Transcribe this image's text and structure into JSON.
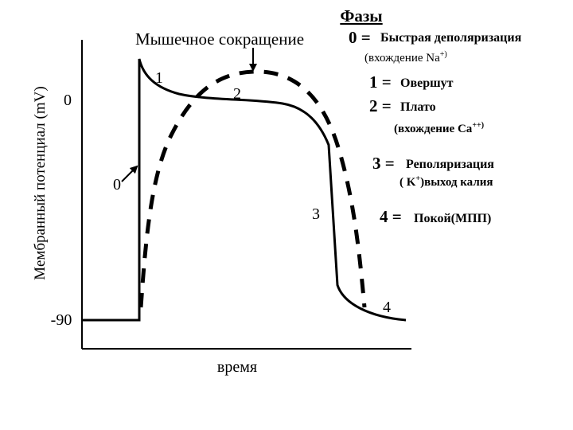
{
  "title": "Фазы",
  "contraction_label": "Мышечное сокращение",
  "y_axis_label": "Мембранный потенциал (mV)",
  "x_axis_label": "время",
  "ticks": {
    "zero": "0",
    "minus90": "-90"
  },
  "curve_labels": {
    "p0": "0",
    "p1": "1",
    "p2": "2",
    "p3": "3",
    "p4": "4"
  },
  "legend": {
    "phase0": {
      "num": "0 =",
      "text": "Быстрая деполяризация",
      "sub": "(вхождение Na",
      "sub_sup": "+)"
    },
    "phase1": {
      "num": "1 =",
      "text": "Овершут"
    },
    "phase2": {
      "num": "2 =",
      "text": "Плато",
      "sub": "(вхождение Ca",
      "sub_sup": "++)"
    },
    "phase3": {
      "num": "3 =",
      "text": "Реполяризация",
      "sub_pre": "( K",
      "sub_sup": "+",
      "sub_post": ")выход калия"
    },
    "phase4": {
      "num": "4 =",
      "text": "Покой(МПП)"
    }
  },
  "colors": {
    "line": "#000000",
    "background": "#ffffff"
  }
}
